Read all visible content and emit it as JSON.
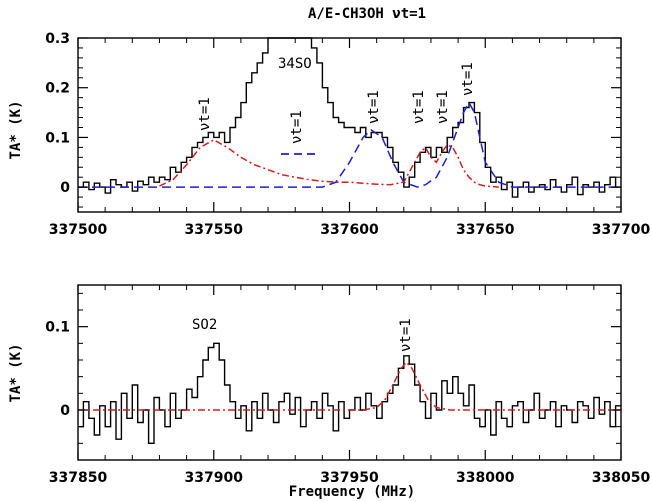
{
  "title": "A/E-CH3OH νt=1",
  "xlabel": "Frequency (MHz)",
  "ylabel": "TA* (K)",
  "chart_data": [
    {
      "type": "line",
      "panel": "top",
      "xlim": [
        337500,
        337700
      ],
      "ylim": [
        -0.05,
        0.3
      ],
      "xticks": [
        337500,
        337550,
        337600,
        337650,
        337700
      ],
      "yticks": [
        0,
        0.1,
        0.2,
        0.3
      ],
      "ytick_labels": [
        "0",
        "0.1",
        "0.2",
        "0.3"
      ],
      "annotations": [
        "34SO",
        "νt=1",
        "νt=1",
        "νt=1",
        "νt=1",
        "νt=1",
        "νt=1"
      ],
      "series": [
        {
          "style": "black-step",
          "color": "#000000",
          "x": [
            337500,
            337502,
            337504,
            337506,
            337508,
            337510,
            337512,
            337514,
            337516,
            337518,
            337520,
            337522,
            337524,
            337526,
            337528,
            337530,
            337532,
            337534,
            337536,
            337538,
            337540,
            337542,
            337544,
            337546,
            337548,
            337550,
            337552,
            337554,
            337556,
            337558,
            337560,
            337562,
            337564,
            337566,
            337568,
            337570,
            337572,
            337574,
            337576,
            337578,
            337580,
            337582,
            337584,
            337586,
            337588,
            337590,
            337592,
            337594,
            337596,
            337598,
            337600,
            337602,
            337604,
            337606,
            337608,
            337610,
            337612,
            337614,
            337616,
            337618,
            337620,
            337622,
            337624,
            337626,
            337628,
            337630,
            337632,
            337634,
            337636,
            337638,
            337640,
            337642,
            337644,
            337646,
            337648,
            337650,
            337652,
            337654,
            337656,
            337658,
            337660,
            337662,
            337664,
            337666,
            337668,
            337670,
            337672,
            337674,
            337676,
            337678,
            337680,
            337682,
            337684,
            337686,
            337688,
            337690,
            337692,
            337694,
            337696,
            337698
          ],
          "y": [
            0.0,
            0.01,
            -0.005,
            0.008,
            0.0,
            -0.012,
            0.015,
            0.005,
            0.0,
            0.01,
            -0.008,
            0.012,
            0.005,
            0.02,
            0.01,
            0.02,
            0.015,
            0.04,
            0.03,
            0.05,
            0.06,
            0.08,
            0.09,
            0.1,
            0.11,
            0.1,
            0.11,
            0.09,
            0.12,
            0.14,
            0.17,
            0.21,
            0.23,
            0.25,
            0.27,
            0.3,
            0.3,
            0.3,
            0.3,
            0.3,
            0.3,
            0.3,
            0.3,
            0.28,
            0.25,
            0.2,
            0.17,
            0.14,
            0.13,
            0.12,
            0.12,
            0.11,
            0.12,
            0.1,
            0.11,
            0.11,
            0.1,
            0.08,
            0.05,
            0.03,
            0.0,
            0.02,
            0.05,
            0.07,
            0.08,
            0.06,
            0.08,
            0.07,
            0.1,
            0.12,
            0.13,
            0.16,
            0.17,
            0.15,
            0.09,
            0.04,
            0.01,
            0.02,
            -0.005,
            0.01,
            -0.02,
            0.0,
            0.01,
            -0.01,
            0.0,
            0.005,
            -0.005,
            0.015,
            0.0,
            -0.01,
            0.005,
            0.02,
            -0.015,
            0.005,
            0.0,
            0.01,
            -0.01,
            0.005,
            0.02,
            0.0
          ]
        },
        {
          "style": "blue-dashed",
          "color": "#1f1fd1",
          "x": [
            337500,
            337530,
            337560,
            337580,
            337590,
            337595,
            337600,
            337605,
            337608,
            337612,
            337616,
            337620,
            337625,
            337628,
            337632,
            337636,
            337640,
            337642,
            337644,
            337646,
            337648,
            337650,
            337655,
            337660,
            337700
          ],
          "y": [
            0,
            0,
            0,
            0,
            0,
            0.01,
            0.05,
            0.1,
            0.115,
            0.1,
            0.05,
            0.01,
            0.0,
            0.005,
            0.02,
            0.06,
            0.12,
            0.15,
            0.17,
            0.15,
            0.1,
            0.05,
            0.01,
            0,
            0
          ]
        },
        {
          "style": "red-dash-dot",
          "color": "#d11f1f",
          "x": [
            337530,
            337535,
            337540,
            337545,
            337550,
            337555,
            337560,
            337565,
            337570,
            337575,
            337580,
            337585,
            337590,
            337595,
            337600,
            337605,
            337610,
            337615,
            337620,
            337622,
            337624,
            337626,
            337628,
            337630,
            337632,
            337634,
            337636,
            337638,
            337640,
            337642,
            337644,
            337646,
            337648,
            337650,
            337655
          ],
          "y": [
            0.002,
            0.015,
            0.045,
            0.08,
            0.095,
            0.08,
            0.06,
            0.045,
            0.035,
            0.025,
            0.02,
            0.015,
            0.012,
            0.01,
            0.01,
            0.008,
            0.006,
            0.005,
            0.01,
            0.03,
            0.05,
            0.07,
            0.08,
            0.06,
            0.05,
            0.07,
            0.085,
            0.08,
            0.06,
            0.035,
            0.02,
            0.01,
            0.005,
            0.002,
            0.0
          ]
        }
      ]
    },
    {
      "type": "line",
      "panel": "bottom",
      "xlim": [
        337850,
        338050
      ],
      "ylim": [
        -0.06,
        0.15
      ],
      "xticks": [
        337850,
        337900,
        337950,
        338000,
        338050
      ],
      "yticks": [
        0,
        0.1
      ],
      "ytick_labels": [
        "0",
        "0.1"
      ],
      "annotations": [
        "SO2",
        "νt=1"
      ],
      "series": [
        {
          "style": "black-step",
          "color": "#000000",
          "x": [
            337850,
            337852,
            337854,
            337856,
            337858,
            337860,
            337862,
            337864,
            337866,
            337868,
            337870,
            337872,
            337874,
            337876,
            337878,
            337880,
            337882,
            337884,
            337886,
            337888,
            337890,
            337892,
            337894,
            337896,
            337898,
            337900,
            337902,
            337904,
            337906,
            337908,
            337910,
            337912,
            337914,
            337916,
            337918,
            337920,
            337922,
            337924,
            337926,
            337928,
            337930,
            337932,
            337934,
            337936,
            337938,
            337940,
            337942,
            337944,
            337946,
            337948,
            337950,
            337952,
            337954,
            337956,
            337958,
            337960,
            337962,
            337964,
            337966,
            337968,
            337970,
            337972,
            337974,
            337976,
            337978,
            337980,
            337982,
            337984,
            337986,
            337988,
            337990,
            337992,
            337994,
            337996,
            337998,
            338000,
            338002,
            338004,
            338006,
            338008,
            338010,
            338012,
            338014,
            338016,
            338018,
            338020,
            338022,
            338024,
            338026,
            338028,
            338030,
            338032,
            338034,
            338036,
            338038,
            338040,
            338042,
            338044,
            338046,
            338048
          ],
          "y": [
            -0.02,
            0.01,
            -0.01,
            -0.03,
            0.005,
            -0.02,
            0.01,
            -0.035,
            0.02,
            -0.01,
            0.03,
            -0.015,
            0.0,
            -0.04,
            0.015,
            0.0,
            -0.02,
            0.02,
            -0.01,
            0.0,
            0.025,
            0.015,
            0.04,
            0.06,
            0.075,
            0.08,
            0.06,
            0.03,
            0.01,
            -0.01,
            0.005,
            -0.025,
            0.01,
            -0.01,
            0.02,
            0.0,
            -0.015,
            0.01,
            0.02,
            -0.005,
            0.015,
            -0.02,
            0.0,
            0.01,
            -0.01,
            0.02,
            0.005,
            -0.025,
            0.01,
            -0.01,
            0.0,
            0.015,
            0.0,
            0.02,
            0.005,
            -0.01,
            0.01,
            0.02,
            0.03,
            0.05,
            0.065,
            0.055,
            0.03,
            0.01,
            -0.01,
            0.02,
            0.0,
            0.035,
            0.02,
            0.04,
            0.02,
            0.005,
            0.03,
            -0.01,
            -0.02,
            0.0,
            -0.03,
            0.01,
            -0.01,
            -0.02,
            0.005,
            0.01,
            -0.015,
            0.0,
            0.02,
            -0.01,
            0.0,
            0.01,
            -0.02,
            0.005,
            0.0,
            -0.015,
            0.01,
            0.005,
            -0.01,
            0.015,
            -0.005,
            0.01,
            -0.02,
            0.005
          ]
        },
        {
          "style": "red-dash-dot",
          "color": "#d11f1f",
          "x": [
            337850,
            337955,
            337960,
            337963,
            337966,
            337969,
            337971,
            337973,
            337976,
            337979,
            337982,
            337987,
            338050
          ],
          "y": [
            0,
            0,
            0.003,
            0.012,
            0.03,
            0.05,
            0.057,
            0.05,
            0.03,
            0.012,
            0.003,
            0,
            0
          ]
        }
      ]
    }
  ]
}
